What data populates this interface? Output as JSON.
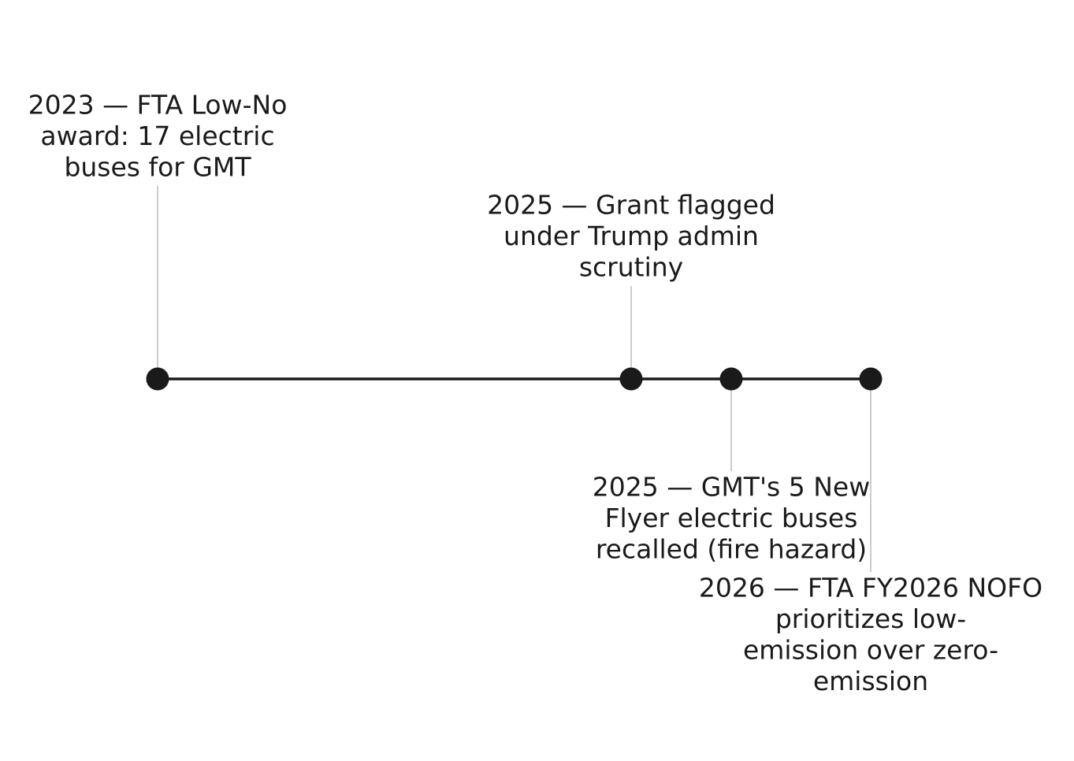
{
  "events": [
    {
      "lines": [
        "2023 — FTA Low-No",
        "award: 17 electric",
        "buses for GMT"
      ]
    },
    {
      "lines": [
        "2025 — Grant flagged",
        "under Trump admin",
        "scrutiny"
      ]
    },
    {
      "lines": [
        "2025 — GMT's 5 New",
        "Flyer electric buses",
        "recalled (fire hazard)"
      ]
    },
    {
      "lines": [
        "2026 — FTA FY2026 NOFO",
        "prioritizes low-",
        "emission over zero-",
        "emission"
      ]
    }
  ]
}
